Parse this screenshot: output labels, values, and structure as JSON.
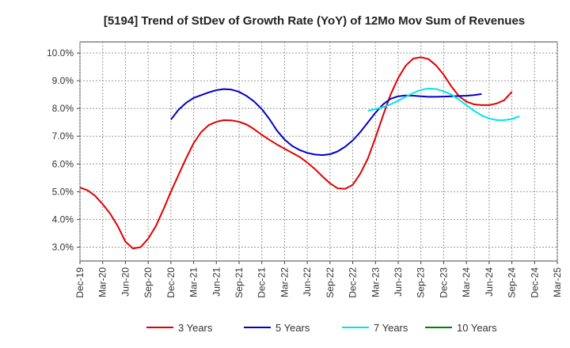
{
  "chart_data": {
    "type": "line",
    "title": "[5194]  Trend of StDev of Growth Rate (YoY) of 12Mo Mov Sum of Revenues",
    "xlabel": "",
    "ylabel": "",
    "ylim": [
      2.5,
      10.4
    ],
    "yticks": [
      3.0,
      4.0,
      5.0,
      6.0,
      7.0,
      8.0,
      9.0,
      10.0
    ],
    "ytick_labels": [
      "3.0%",
      "4.0%",
      "5.0%",
      "6.0%",
      "7.0%",
      "8.0%",
      "9.0%",
      "10.0%"
    ],
    "x_range": [
      0,
      63
    ],
    "xtick_positions": [
      0,
      3,
      6,
      9,
      12,
      15,
      18,
      21,
      24,
      27,
      30,
      33,
      36,
      39,
      42,
      45,
      48,
      51,
      54,
      57,
      60,
      63
    ],
    "xtick_labels": [
      "Dec-19",
      "Mar-20",
      "Jun-20",
      "Sep-20",
      "Dec-20",
      "Mar-21",
      "Jun-21",
      "Sep-21",
      "Dec-21",
      "Mar-22",
      "Jun-22",
      "Sep-22",
      "Dec-22",
      "Mar-23",
      "Jun-23",
      "Sep-23",
      "Dec-23",
      "Mar-24",
      "Jun-24",
      "Sep-24",
      "Dec-24",
      "Mar-25"
    ],
    "grid": true,
    "legend_position": "bottom",
    "series": [
      {
        "name": "3 Years",
        "color": "#e00000",
        "x_start": 0,
        "values": [
          5.15,
          5.05,
          4.85,
          4.55,
          4.2,
          3.75,
          3.2,
          2.95,
          3.0,
          3.3,
          3.75,
          4.35,
          5.0,
          5.6,
          6.2,
          6.75,
          7.15,
          7.4,
          7.52,
          7.58,
          7.57,
          7.52,
          7.42,
          7.25,
          7.05,
          6.87,
          6.7,
          6.55,
          6.4,
          6.25,
          6.05,
          5.82,
          5.55,
          5.3,
          5.12,
          5.1,
          5.25,
          5.65,
          6.2,
          6.95,
          7.75,
          8.5,
          9.1,
          9.55,
          9.8,
          9.85,
          9.78,
          9.55,
          9.22,
          8.8,
          8.45,
          8.25,
          8.15,
          8.12,
          8.12,
          8.18,
          8.3,
          8.6
        ]
      },
      {
        "name": "5 Years",
        "color": "#0000cc",
        "x_start": 12,
        "values": [
          7.6,
          7.95,
          8.2,
          8.38,
          8.48,
          8.58,
          8.66,
          8.7,
          8.68,
          8.6,
          8.45,
          8.25,
          7.98,
          7.62,
          7.2,
          6.88,
          6.65,
          6.5,
          6.4,
          6.34,
          6.32,
          6.35,
          6.45,
          6.62,
          6.85,
          7.15,
          7.5,
          7.85,
          8.15,
          8.35,
          8.44,
          8.47,
          8.46,
          8.44,
          8.42,
          8.42,
          8.43,
          8.44,
          8.45,
          8.46,
          8.48,
          8.52
        ]
      },
      {
        "name": "7 Years",
        "color": "#00e6e6",
        "x_start": 38,
        "values": [
          7.92,
          7.98,
          8.05,
          8.15,
          8.28,
          8.42,
          8.56,
          8.67,
          8.72,
          8.7,
          8.62,
          8.5,
          8.32,
          8.12,
          7.92,
          7.75,
          7.64,
          7.58,
          7.58,
          7.62,
          7.72
        ]
      },
      {
        "name": "10 Years",
        "color": "#008000",
        "x_start": 0,
        "values": []
      }
    ]
  }
}
